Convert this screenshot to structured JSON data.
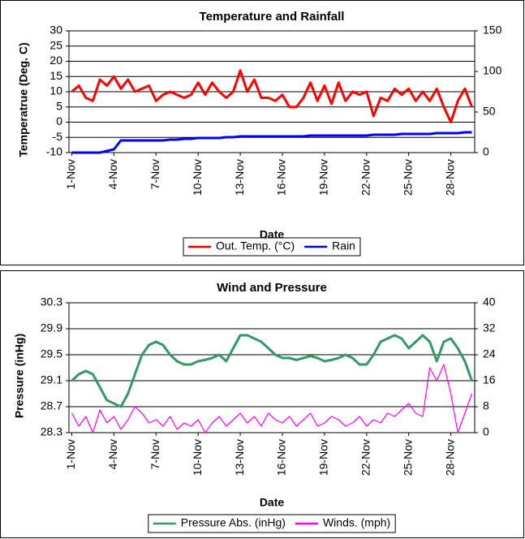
{
  "chart_data": [
    {
      "type": "line",
      "title": "Temperature and Rainfall",
      "x_label": "Date",
      "y_label": "Temperatrue (Deg. C)",
      "x": [
        1,
        1.5,
        2,
        2.5,
        3,
        3.5,
        4,
        4.5,
        5,
        5.5,
        6,
        6.5,
        7,
        7.5,
        8,
        8.5,
        9,
        9.5,
        10,
        10.5,
        11,
        11.5,
        12,
        12.5,
        13,
        13.5,
        14,
        14.5,
        15,
        15.5,
        16,
        16.5,
        17,
        17.5,
        18,
        18.5,
        19,
        19.5,
        20,
        20.5,
        21,
        21.5,
        22,
        22.5,
        23,
        23.5,
        24,
        24.5,
        25,
        25.5,
        26,
        26.5,
        27,
        27.5,
        28,
        28.5,
        29,
        29.5
      ],
      "xlim": [
        0.8,
        29.7
      ],
      "xticks": [
        {
          "value": 1,
          "label": "1-Nov"
        },
        {
          "value": 4,
          "label": "4-Nov"
        },
        {
          "value": 7,
          "label": "7-Nov"
        },
        {
          "value": 10,
          "label": "10-Nov"
        },
        {
          "value": 13,
          "label": "13-Nov"
        },
        {
          "value": 16,
          "label": "16-Nov"
        },
        {
          "value": 19,
          "label": "19-Nov"
        },
        {
          "value": 22,
          "label": "22-Nov"
        },
        {
          "value": 25,
          "label": "25-Nov"
        },
        {
          "value": 28,
          "label": "28-Nov"
        }
      ],
      "ylim": [
        -10,
        30
      ],
      "yticks": [
        30,
        25,
        20,
        15,
        10,
        5,
        0,
        -5,
        -10
      ],
      "y2lim": [
        0,
        150
      ],
      "y2ticks": [
        150,
        100,
        50,
        0
      ],
      "grid": true,
      "series": [
        {
          "name": "Out. Temp. (°C)",
          "color": "#ff0000",
          "values": [
            10,
            12,
            8,
            7,
            14,
            12,
            15,
            11,
            14,
            10,
            11,
            12,
            7,
            9,
            10,
            9,
            8,
            9,
            13,
            9,
            13,
            10,
            8,
            10,
            17,
            10,
            14,
            8,
            8,
            7,
            9,
            5,
            5,
            8,
            13,
            7,
            12,
            6,
            13,
            7,
            10,
            9,
            10,
            2,
            8,
            7,
            11,
            9,
            11,
            7,
            10,
            7,
            11,
            5,
            0,
            7,
            11,
            5
          ]
        },
        {
          "name": "Rain",
          "color": "#0000ff",
          "axis": "y2",
          "values": [
            0,
            0,
            0,
            0,
            0,
            2,
            4,
            15,
            15,
            15,
            15,
            15,
            15,
            15,
            16,
            16,
            17,
            17,
            18,
            18,
            18,
            18,
            19,
            19,
            20,
            20,
            20,
            20,
            20,
            20,
            20,
            20,
            20,
            20,
            21,
            21,
            21,
            21,
            21,
            21,
            21,
            21,
            21,
            22,
            22,
            22,
            22,
            23,
            23,
            23,
            23,
            23,
            24,
            24,
            24,
            24,
            25,
            25
          ]
        }
      ]
    },
    {
      "type": "line",
      "title": "Wind and Pressure",
      "x_label": "Date",
      "y_label": "Pressure (inHg)",
      "x": [
        1,
        1.5,
        2,
        2.5,
        3,
        3.5,
        4,
        4.5,
        5,
        5.5,
        6,
        6.5,
        7,
        7.5,
        8,
        8.5,
        9,
        9.5,
        10,
        10.5,
        11,
        11.5,
        12,
        12.5,
        13,
        13.5,
        14,
        14.5,
        15,
        15.5,
        16,
        16.5,
        17,
        17.5,
        18,
        18.5,
        19,
        19.5,
        20,
        20.5,
        21,
        21.5,
        22,
        22.5,
        23,
        23.5,
        24,
        24.5,
        25,
        25.5,
        26,
        26.5,
        27,
        27.5,
        28,
        28.5,
        29,
        29.5
      ],
      "xlim": [
        0.8,
        29.7
      ],
      "xticks": [
        {
          "value": 1,
          "label": "1-Nov"
        },
        {
          "value": 4,
          "label": "4-Nov"
        },
        {
          "value": 7,
          "label": "7-Nov"
        },
        {
          "value": 10,
          "label": "10-Nov"
        },
        {
          "value": 13,
          "label": "13-Nov"
        },
        {
          "value": 16,
          "label": "16-Nov"
        },
        {
          "value": 19,
          "label": "19-Nov"
        },
        {
          "value": 22,
          "label": "22-Nov"
        },
        {
          "value": 25,
          "label": "25-Nov"
        },
        {
          "value": 28,
          "label": "28-Nov"
        }
      ],
      "ylim": [
        28.3,
        30.3
      ],
      "yticks": [
        30.3,
        29.9,
        29.5,
        29.1,
        28.7,
        28.3
      ],
      "y2lim": [
        0,
        40
      ],
      "y2ticks": [
        40,
        32,
        24,
        16,
        8,
        0
      ],
      "grid": true,
      "series": [
        {
          "name": "Pressure Abs. (inHg)",
          "color": "#339966",
          "values": [
            29.1,
            29.2,
            29.25,
            29.2,
            29.0,
            28.8,
            28.75,
            28.7,
            28.9,
            29.2,
            29.5,
            29.65,
            29.7,
            29.65,
            29.5,
            29.4,
            29.35,
            29.35,
            29.4,
            29.42,
            29.45,
            29.5,
            29.4,
            29.6,
            29.8,
            29.8,
            29.75,
            29.7,
            29.6,
            29.5,
            29.45,
            29.45,
            29.42,
            29.45,
            29.48,
            29.45,
            29.4,
            29.42,
            29.45,
            29.5,
            29.45,
            29.35,
            29.35,
            29.5,
            29.7,
            29.75,
            29.8,
            29.75,
            29.6,
            29.7,
            29.8,
            29.7,
            29.4,
            29.7,
            29.75,
            29.6,
            29.4,
            29.1
          ]
        },
        {
          "name": "Winds. (mph)",
          "color": "#ff00ff",
          "axis": "y2",
          "values": [
            6,
            2,
            5,
            0,
            7,
            3,
            5,
            1,
            4,
            8,
            6,
            3,
            4,
            2,
            5,
            1,
            3,
            2,
            4,
            0,
            3,
            5,
            2,
            4,
            6,
            3,
            5,
            2,
            6,
            4,
            3,
            5,
            2,
            4,
            6,
            2,
            3,
            5,
            4,
            2,
            3,
            5,
            2,
            4,
            3,
            6,
            5,
            7,
            9,
            6,
            5,
            20,
            16,
            21,
            12,
            0,
            6,
            12
          ]
        }
      ]
    }
  ]
}
